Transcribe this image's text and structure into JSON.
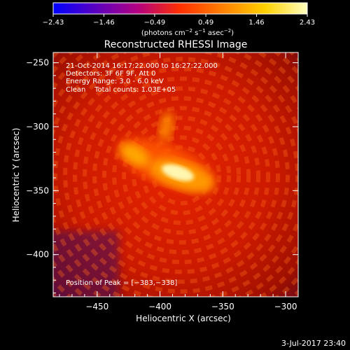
{
  "chart_data": {
    "type": "heatmap",
    "title": "Reconstructed RHESSI Image",
    "xlabel": "Heliocentric X (arcsec)",
    "ylabel": "Heliocentric Y (arcsec)",
    "xlim": [
      -485,
      -290
    ],
    "ylim": [
      -433,
      -242
    ],
    "xticks": [
      -450,
      -400,
      -350,
      -300
    ],
    "yticks": [
      -400,
      -350,
      -300,
      -250
    ],
    "xtick_labels": [
      "−450",
      "−400",
      "−350",
      "−300"
    ],
    "ytick_labels": [
      "−400",
      "−350",
      "−300",
      "−250"
    ],
    "colorbar": {
      "range": [
        -2.43,
        2.43
      ],
      "ticks": [
        -2.43,
        -1.46,
        -0.49,
        0.49,
        1.46,
        2.43
      ],
      "tick_labels": [
        "−2.43",
        "−1.46",
        "−0.49",
        "0.49",
        "1.46",
        "2.43"
      ],
      "unit_parts": [
        "(photons cm",
        "−2",
        " s",
        "−1",
        " asec",
        "−2",
        ")"
      ],
      "colors": [
        "#0000ff",
        "#5a00c0",
        "#b40080",
        "#ff3000",
        "#ff8000",
        "#ffd000",
        "#ffffc0"
      ]
    },
    "annotations": [
      "21-Oct-2014 16:17:22.000 to 16:27:22.000",
      "Detectors: 3F 6F 9F, Att 0",
      "Energy Range: 3.0 - 6.0 keV",
      "Clean    Total counts: 1.03E+05"
    ],
    "peak_label": "Position of Peak = [−383,−338]",
    "peak": [
      -383,
      -338
    ],
    "sources": [
      {
        "x": -383,
        "y": -338,
        "intensity": 2.43
      },
      {
        "x": -420,
        "y": -322,
        "intensity": 1.6
      },
      {
        "x": -395,
        "y": -300,
        "intensity": 1.3
      }
    ],
    "date_stamp": "3-Jul-2017 23:40"
  }
}
